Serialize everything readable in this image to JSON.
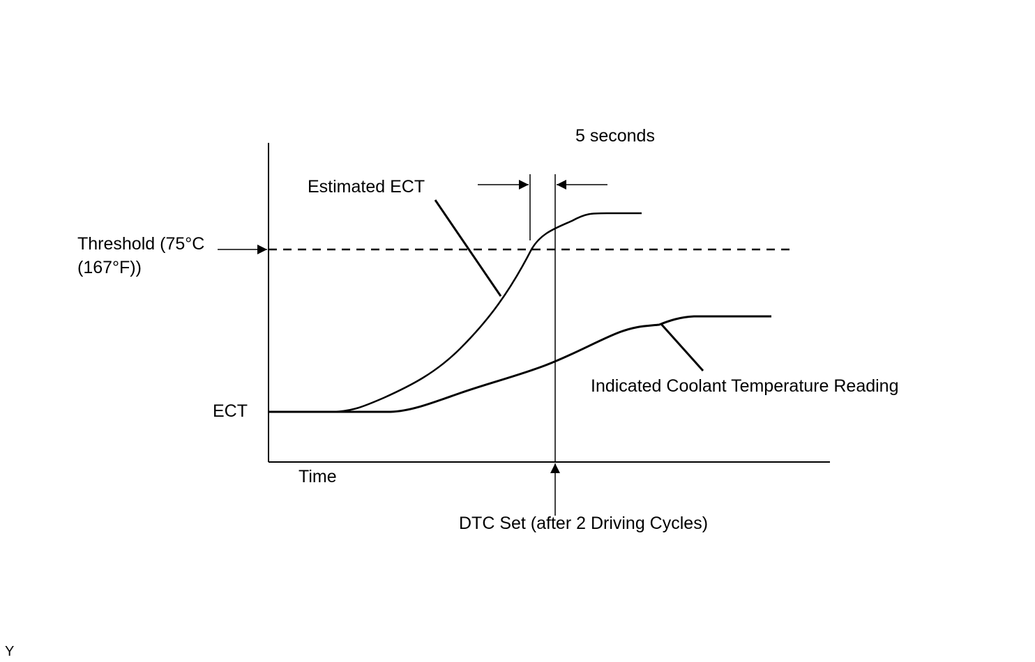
{
  "labels": {
    "five_seconds": "5 seconds",
    "estimated_ect": "Estimated ECT",
    "threshold_line1": "Threshold  (75°C",
    "threshold_line2": "(167°F))",
    "ect_axis": "ECT",
    "time_axis": "Time",
    "indicated_reading": "Indicated Coolant Temperature Reading",
    "dtc_set": "DTC Set (after 2 Driving Cycles)",
    "corner_mark": "Y"
  },
  "colors": {
    "line": "#000000",
    "background": "#ffffff"
  }
}
